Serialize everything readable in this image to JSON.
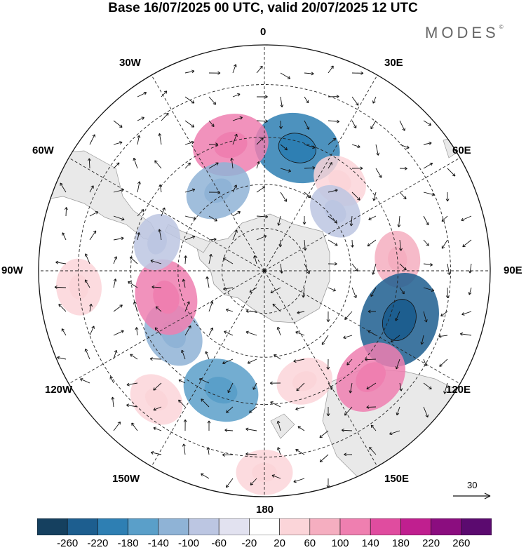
{
  "title": "Base 16/07/2025 00 UTC, valid 20/07/2025 12 UTC",
  "brand": "MODES",
  "brand_mark": "©",
  "longitude_labels": {
    "lon_0": "0",
    "lon_30e": "30E",
    "lon_60e": "60E",
    "lon_90e": "90E",
    "lon_120e": "120E",
    "lon_150e": "150E",
    "lon_180": "180",
    "lon_150w": "150W",
    "lon_120w": "120W",
    "lon_90w": "90W",
    "lon_60w": "60W",
    "lon_30w": "30W"
  },
  "vector_reference": "30",
  "colorbar": {
    "ticks": [
      "-260",
      "-220",
      "-180",
      "-140",
      "-100",
      "-60",
      "-20",
      "20",
      "60",
      "100",
      "140",
      "180",
      "220",
      "260"
    ],
    "colors": [
      "#15405f",
      "#1d5e8f",
      "#2e7fb3",
      "#5a9fc9",
      "#8fb3d6",
      "#bcc6e2",
      "#e2e2f0",
      "#ffffff",
      "#fbd5d9",
      "#f5aec0",
      "#ef7fb0",
      "#e04c9f",
      "#c01f8f",
      "#8b0d7f",
      "#5b0a6f"
    ]
  },
  "map": {
    "projection": "south-polar-stereographic",
    "field": "anomaly",
    "anomalies": [
      {
        "lon": 15,
        "lat": -47,
        "value": -180,
        "color": "#2e7fb3"
      },
      {
        "lon": -15,
        "lat": -46,
        "value": 140,
        "color": "#ef7fb0"
      },
      {
        "lon": -30,
        "lat": -58,
        "value": -100,
        "color": "#8fb3d6"
      },
      {
        "lon": 40,
        "lat": -50,
        "value": 60,
        "color": "#fbd5d9"
      },
      {
        "lon": 50,
        "lat": -58,
        "value": -60,
        "color": "#bcc6e2"
      },
      {
        "lon": 85,
        "lat": -45,
        "value": 60,
        "color": "#f5aec0"
      },
      {
        "lon": 110,
        "lat": -42,
        "value": -220,
        "color": "#1d5e8f"
      },
      {
        "lon": 135,
        "lat": -40,
        "value": 140,
        "color": "#ef7fb0"
      },
      {
        "lon": 160,
        "lat": -50,
        "value": 60,
        "color": "#fbd5d9"
      },
      {
        "lon": -160,
        "lat": -47,
        "value": -140,
        "color": "#5a9fc9"
      },
      {
        "lon": -125,
        "lat": -52,
        "value": -100,
        "color": "#8fb3d6"
      },
      {
        "lon": -105,
        "lat": -55,
        "value": 140,
        "color": "#ef7fb0"
      },
      {
        "lon": -75,
        "lat": -52,
        "value": -60,
        "color": "#bcc6e2"
      },
      {
        "lon": -95,
        "lat": -30,
        "value": 60,
        "color": "#fbd5d9"
      },
      {
        "lon": -140,
        "lat": -35,
        "value": 60,
        "color": "#fbd5d9"
      },
      {
        "lon": 180,
        "lat": -26,
        "value": 60,
        "color": "#fbd5d9"
      }
    ]
  }
}
